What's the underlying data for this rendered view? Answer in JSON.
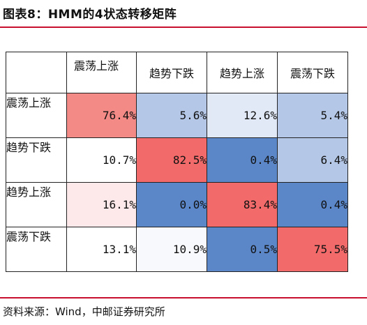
{
  "title": "图表8：HMM的4状态转移矩阵",
  "columns": [
    "震荡上涨",
    "趋势下跌",
    "趋势上涨",
    "震荡下跌"
  ],
  "rows": [
    {
      "label": "震荡上涨",
      "values": [
        "76.4%",
        "5.6%",
        "12.6%",
        "5.4%"
      ],
      "colors": [
        "#f38a86",
        "#b4c7e6",
        "#e2e9f6",
        "#b4c7e6"
      ]
    },
    {
      "label": "趋势下跌",
      "values": [
        "10.7%",
        "82.5%",
        "0.4%",
        "6.4%"
      ],
      "colors": [
        "#ffffff",
        "#f36a6a",
        "#5b87c9",
        "#b4c7e6"
      ]
    },
    {
      "label": "趋势上涨",
      "values": [
        "16.1%",
        "0.0%",
        "83.4%",
        "0.4%"
      ],
      "colors": [
        "#fde9ea",
        "#5b87c9",
        "#f36a6a",
        "#5b87c9"
      ]
    },
    {
      "label": "震荡下跌",
      "values": [
        "13.1%",
        "10.9%",
        "0.5%",
        "75.5%"
      ],
      "colors": [
        "#ffffff",
        "#f8f9fd",
        "#5b87c9",
        "#f36a6a"
      ]
    }
  ],
  "source": "资料来源：Wind，中邮证券研究所"
}
